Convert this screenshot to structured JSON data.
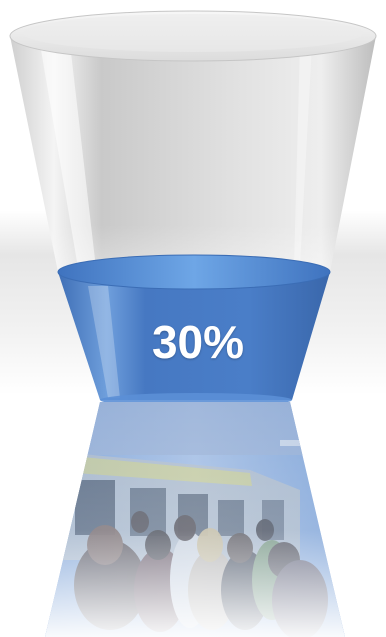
{
  "funnel": {
    "percent_label": "30%",
    "fill_level": 0.3,
    "colors": {
      "glass": "#d9d9d9",
      "glass_rim": "#efefef",
      "liquid": "#4a7ec8",
      "liquid_top": "#5f9ae0",
      "photo_tint": "#6f99d4"
    }
  },
  "photo": {
    "subject": "crowded-subway-platform"
  }
}
